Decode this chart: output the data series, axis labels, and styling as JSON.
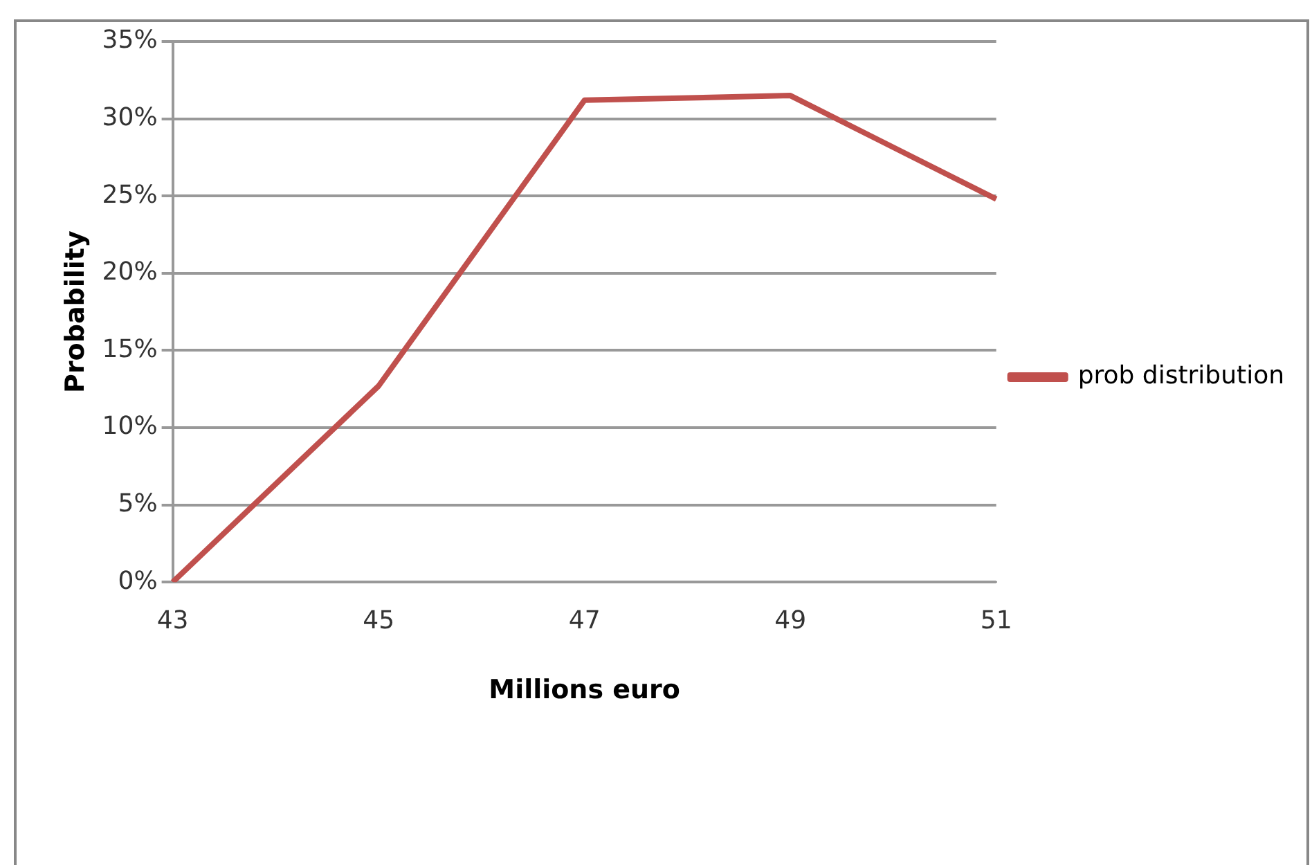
{
  "chart_data": {
    "type": "line",
    "xlabel": "Millions euro",
    "ylabel": "Probability",
    "categories": [
      "43",
      "45",
      "47",
      "49",
      "51"
    ],
    "series": [
      {
        "name": "prob distribution",
        "color": "#c0504d",
        "values": [
          0,
          12.7,
          31.2,
          31.5,
          24.8
        ]
      }
    ],
    "ylim": [
      0,
      35
    ],
    "yticks": [
      {
        "value": 0,
        "label": "0%"
      },
      {
        "value": 5,
        "label": "5%"
      },
      {
        "value": 10,
        "label": "10%"
      },
      {
        "value": 15,
        "label": "15%"
      },
      {
        "value": 20,
        "label": "20%"
      },
      {
        "value": 25,
        "label": "25%"
      },
      {
        "value": 30,
        "label": "30%"
      },
      {
        "value": 35,
        "label": "35%"
      }
    ],
    "grid": "y",
    "legend": "right",
    "marker": "none",
    "line_style": "solid"
  }
}
